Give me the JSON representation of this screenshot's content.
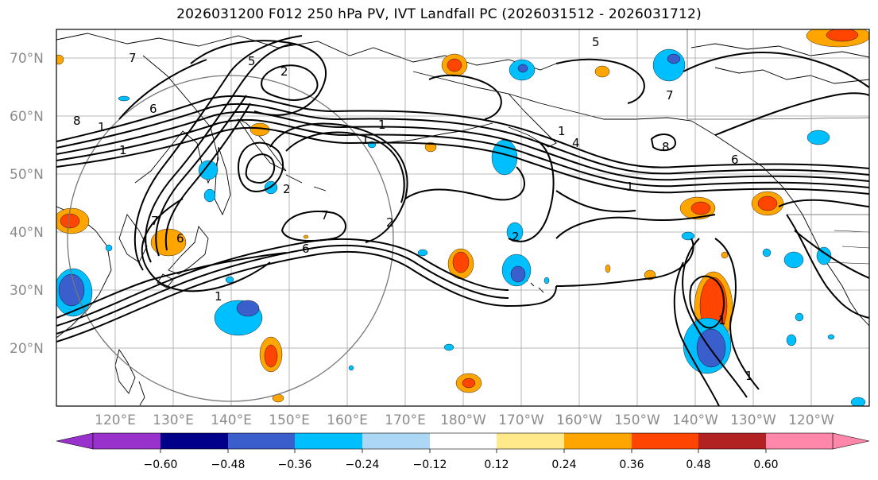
{
  "title": "2026031200 F012 250 hPa PV, IVT Landfall PC (2026031512 - 2026031712)",
  "lat_labels": [
    "70°N",
    "60°N",
    "50°N",
    "40°N",
    "30°N",
    "20°N"
  ],
  "lon_labels": [
    "120°E",
    "130°E",
    "140°E",
    "150°E",
    "160°E",
    "170°E",
    "180°W",
    "170°W",
    "160°W",
    "150°W",
    "140°W",
    "130°W",
    "120°W"
  ],
  "colorbar": {
    "ticks": [
      "−0.60",
      "−0.48",
      "−0.36",
      "−0.24",
      "−0.12",
      "0.12",
      "0.24",
      "0.36",
      "0.48",
      "0.60"
    ],
    "colors": [
      "#9932CC",
      "#00008B",
      "#3A5FCD",
      "#00BFFF",
      "#ADD8F5",
      "#FFFFFF",
      "#FFE98A",
      "#FFA500",
      "#FF4500",
      "#B22222",
      "#FF88AA"
    ]
  },
  "contour_labels": [
    "7",
    "2",
    "5",
    "6",
    "1",
    "1",
    "1",
    "2",
    "7",
    "6",
    "1",
    "2",
    "7",
    "6",
    "8",
    "1",
    "1",
    "1",
    "1",
    "7",
    "8",
    "6",
    "4",
    "5",
    "2",
    "1"
  ]
}
